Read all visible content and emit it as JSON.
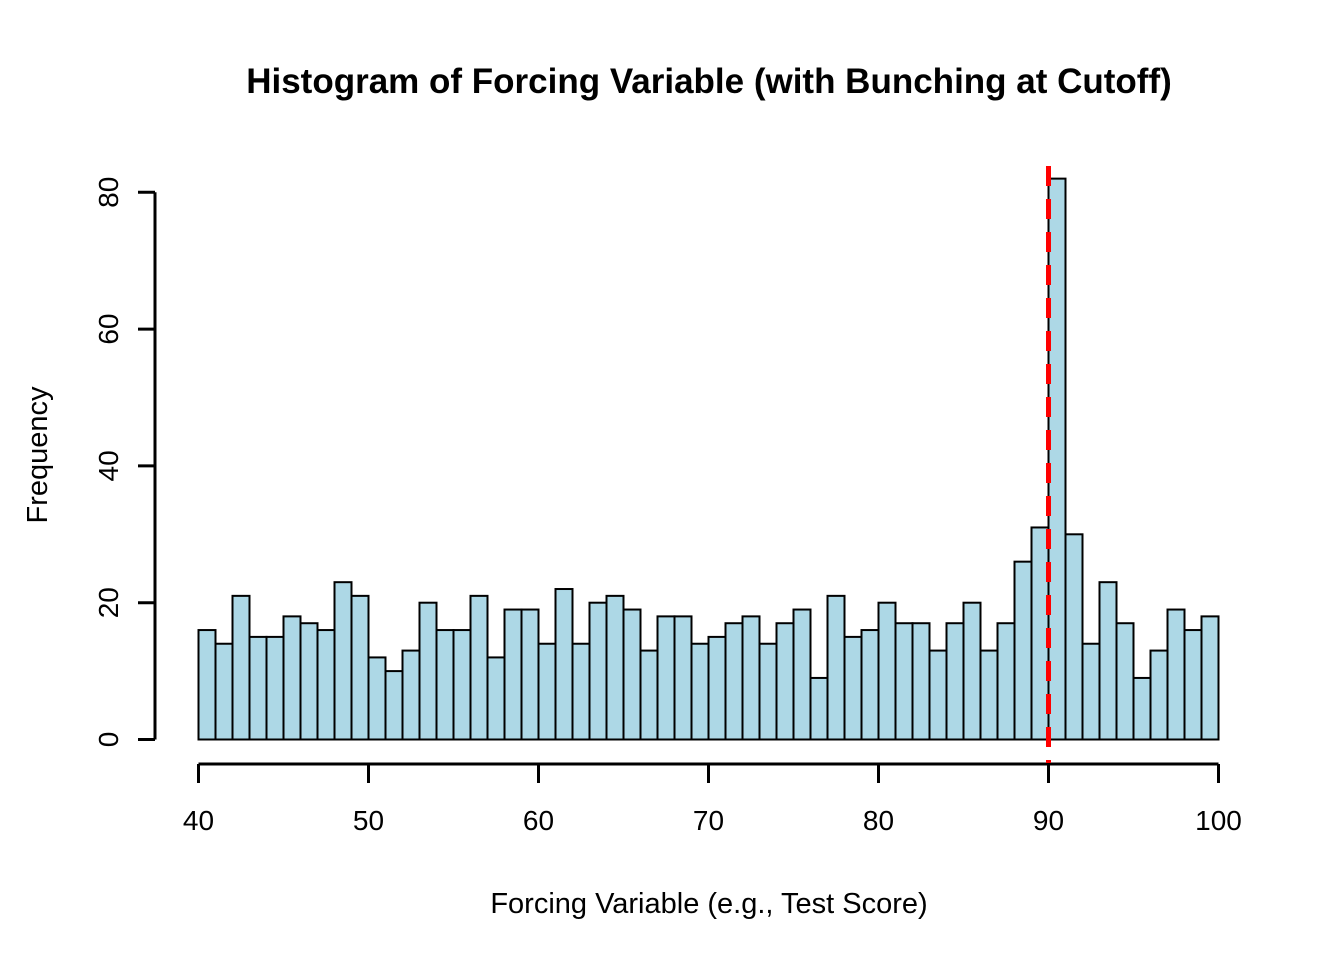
{
  "chart_data": {
    "type": "bar",
    "subtype": "histogram",
    "title": "Histogram of Forcing Variable (with Bunching at Cutoff)",
    "xlabel": "Forcing Variable (e.g., Test Score)",
    "ylabel": "Frequency",
    "xlim": [
      40,
      100
    ],
    "ylim": [
      0,
      82
    ],
    "bin_start": 40,
    "bin_width": 1,
    "x_ticks": [
      40,
      50,
      60,
      70,
      80,
      90,
      100
    ],
    "y_ticks": [
      0,
      20,
      40,
      60,
      80
    ],
    "grid": "off",
    "legend": "none",
    "values": [
      16,
      14,
      21,
      15,
      15,
      18,
      17,
      16,
      23,
      21,
      12,
      10,
      13,
      20,
      16,
      16,
      21,
      12,
      19,
      19,
      14,
      22,
      14,
      20,
      21,
      19,
      13,
      18,
      18,
      14,
      15,
      17,
      18,
      14,
      17,
      19,
      9,
      21,
      15,
      16,
      20,
      17,
      17,
      13,
      17,
      20,
      13,
      17,
      26,
      31,
      82,
      30,
      14,
      23,
      17,
      9,
      13,
      19,
      16,
      18
    ],
    "cutoff_x": 90,
    "cutoff_line_style": "dashed",
    "colors": {
      "bar_fill": "#ADD8E6",
      "bar_border": "#000000",
      "cutoff_line": "#FF0000",
      "axis": "#000000",
      "background": "#FFFFFF"
    }
  }
}
